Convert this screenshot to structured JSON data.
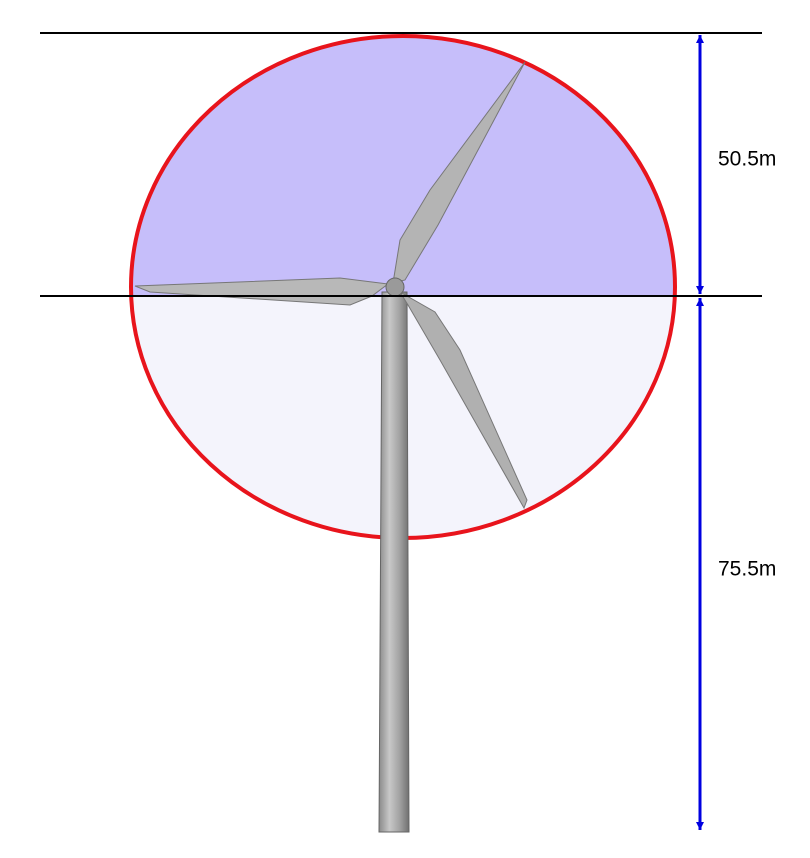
{
  "dimensions": [
    {
      "label": "50.5m"
    },
    {
      "label": "75.5m"
    }
  ]
}
